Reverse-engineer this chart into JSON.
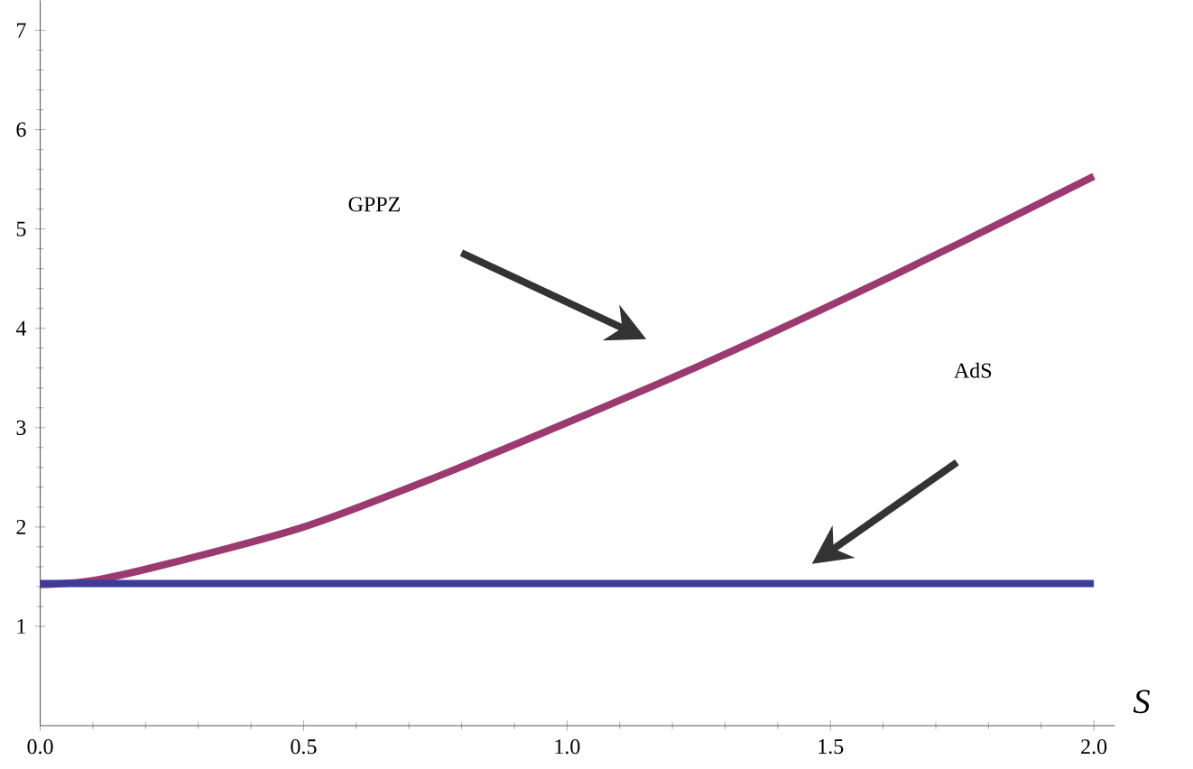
{
  "chart_data": {
    "type": "line",
    "xlabel": "S",
    "xlim": [
      0,
      2.04
    ],
    "ylim": [
      0,
      7.3
    ],
    "xticks": [
      {
        "value": 0,
        "label": "0.0"
      },
      {
        "value": 0.5,
        "label": "0.5"
      },
      {
        "value": 1,
        "label": "1.0"
      },
      {
        "value": 1.5,
        "label": "1.5"
      },
      {
        "value": 2,
        "label": "2.0"
      }
    ],
    "yticks": [
      1,
      2,
      3,
      4,
      5,
      6,
      7
    ],
    "grid": false,
    "marker": "none",
    "line_style": "solid",
    "series": [
      {
        "color": "#9b3a6e",
        "x": [
          0,
          0.1,
          0.25,
          0.5,
          0.75,
          1.0,
          1.25,
          1.5,
          1.75,
          2.0
        ],
        "values": [
          1.42,
          1.46,
          1.64,
          2.0,
          2.5,
          3.05,
          3.62,
          4.23,
          4.87,
          5.53
        ]
      },
      {
        "color": "#3b3b9a",
        "x": [
          0,
          2.0
        ],
        "values": [
          1.43,
          1.43
        ]
      }
    ],
    "annotations": [
      "GPPZ",
      "AdS"
    ]
  }
}
